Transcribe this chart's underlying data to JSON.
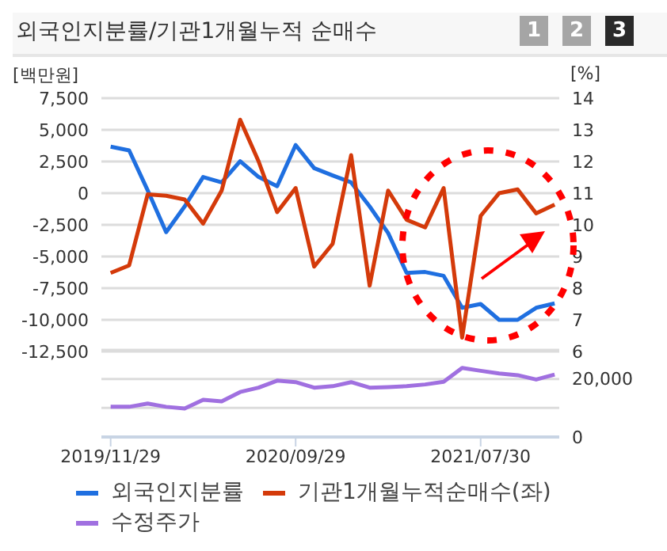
{
  "chart_data": [
    {
      "type": "line",
      "title": "외국인지분률/기관1개월누적 순매수",
      "ylabel": "[백만원]",
      "y2label": "[%]",
      "annotations": [
        "1",
        "2",
        "3"
      ],
      "categories": [
        "2019/11/29",
        null,
        null,
        null,
        null,
        null,
        null,
        null,
        null,
        null,
        "2020/09/29",
        null,
        null,
        null,
        null,
        null,
        null,
        null,
        null,
        null,
        "2021/07/30",
        null,
        null,
        null,
        null
      ],
      "series": [
        {
          "name": "외국인지분률",
          "color": "#1f6fe0",
          "axis": "y2",
          "values": [
            12.47,
            12.35,
            11.09,
            9.77,
            10.58,
            11.51,
            11.34,
            12.01,
            11.51,
            11.22,
            12.52,
            11.79,
            11.56,
            11.34,
            10.58,
            9.74,
            8.48,
            8.51,
            8.39,
            7.38,
            7.5,
            7.0,
            7.0,
            7.38,
            7.52
          ]
        },
        {
          "name": "기관1개월누적순매수(좌)",
          "color": "#d43a0a",
          "values": [
            -6300,
            -5700,
            -100,
            -200,
            -500,
            -2400,
            200,
            5800,
            2500,
            -1500,
            400,
            -5800,
            -4000,
            3000,
            -7300,
            200,
            -2100,
            -2700,
            400,
            -11400,
            -1800,
            0,
            300,
            -1600,
            -900
          ]
        }
      ],
      "ylim": [
        -12500,
        7500
      ],
      "yticks": [
        {
          "value": -12500,
          "label": "-12,500"
        },
        {
          "value": -10000,
          "label": "-10,000"
        },
        {
          "value": -7500,
          "label": "-7,500"
        },
        {
          "value": -5000,
          "label": "-5,000"
        },
        {
          "value": -2500,
          "label": "-2,500"
        },
        0,
        {
          "value": 2500,
          "label": "2,500"
        },
        {
          "value": 5000,
          "label": "5,000"
        },
        {
          "value": 7500,
          "label": "7,500"
        }
      ],
      "y2lim": [
        6,
        14
      ],
      "y2ticks": [
        6,
        7,
        8,
        9,
        10,
        11,
        12,
        13,
        14
      ],
      "grid": "y",
      "legend": "bottom",
      "tick_labels": "y"
    },
    {
      "type": "line",
      "categories": [
        "2019/11/29",
        null,
        null,
        null,
        null,
        null,
        null,
        null,
        null,
        null,
        "2020/09/29",
        null,
        null,
        null,
        null,
        null,
        null,
        null,
        null,
        null,
        "2021/07/30",
        null,
        null,
        null,
        null
      ],
      "series": [
        {
          "name": "수정주가",
          "color": "#a070e0",
          "axis": "y2",
          "values": [
            10400,
            10400,
            11500,
            10400,
            9800,
            12800,
            12300,
            15500,
            17000,
            19400,
            18900,
            17000,
            17500,
            18900,
            17000,
            17200,
            17500,
            18100,
            19000,
            23800,
            22800,
            21900,
            21300,
            19800,
            21500
          ]
        }
      ],
      "y2lim": [
        0,
        30000
      ],
      "y2ticks": [
        0,
        {
          "value": 10000,
          "label": null
        },
        {
          "value": 20000,
          "label": "20,000"
        },
        {
          "value": 30000,
          "label": null
        }
      ],
      "grid": "y",
      "legend": "bottom"
    }
  ]
}
